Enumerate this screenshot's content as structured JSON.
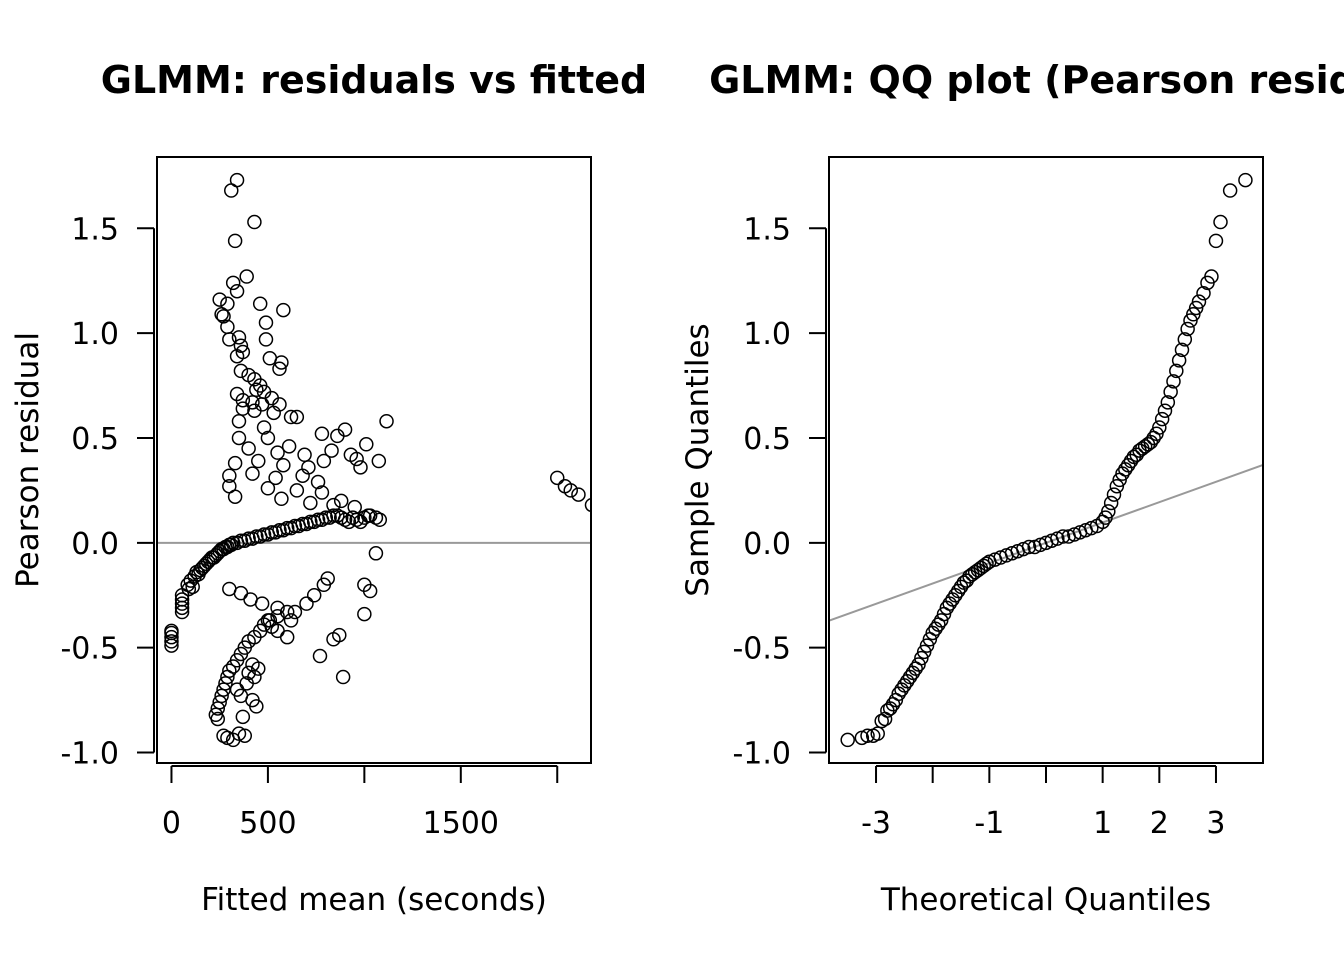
{
  "chart_data": [
    {
      "type": "scatter",
      "title": "GLMM: residuals vs fitted",
      "xlabel": "Fitted mean (seconds)",
      "ylabel": "Pearson residual",
      "xlim": [
        -75,
        2175
      ],
      "ylim": [
        -1.05,
        1.84
      ],
      "x_ticks": [
        0,
        500,
        1000,
        1500,
        2000
      ],
      "x_tick_labels": [
        "0",
        "500",
        "",
        "1500",
        ""
      ],
      "y_ticks": [
        -1.0,
        -0.5,
        0.0,
        0.5,
        1.0,
        1.5
      ],
      "y_tick_labels": [
        "-1.0",
        "-0.5",
        "0.0",
        "0.5",
        "1.0",
        "1.5"
      ],
      "reference_line": {
        "type": "horizontal",
        "y": 0,
        "color": "#999999"
      },
      "grid": false,
      "marker": "open-circle",
      "points": [
        [
          0,
          -0.49
        ],
        [
          0,
          -0.47
        ],
        [
          0,
          -0.45
        ],
        [
          0,
          -0.43
        ],
        [
          0,
          -0.42
        ],
        [
          55,
          -0.33
        ],
        [
          55,
          -0.31
        ],
        [
          55,
          -0.29
        ],
        [
          55,
          -0.27
        ],
        [
          55,
          -0.25
        ],
        [
          84,
          -0.2
        ],
        [
          90,
          -0.22
        ],
        [
          100,
          -0.18
        ],
        [
          110,
          -0.21
        ],
        [
          120,
          -0.16
        ],
        [
          130,
          -0.14
        ],
        [
          140,
          -0.15
        ],
        [
          150,
          -0.13
        ],
        [
          160,
          -0.12
        ],
        [
          170,
          -0.11
        ],
        [
          180,
          -0.1
        ],
        [
          190,
          -0.09
        ],
        [
          200,
          -0.08
        ],
        [
          210,
          -0.07
        ],
        [
          220,
          -0.07
        ],
        [
          230,
          -0.06
        ],
        [
          240,
          -0.05
        ],
        [
          250,
          -0.04
        ],
        [
          260,
          -0.03
        ],
        [
          270,
          -0.03
        ],
        [
          280,
          -0.02
        ],
        [
          290,
          -0.02
        ],
        [
          300,
          -0.01
        ],
        [
          310,
          -0.01
        ],
        [
          320,
          0.0
        ],
        [
          340,
          0.0
        ],
        [
          360,
          0.01
        ],
        [
          380,
          0.01
        ],
        [
          400,
          0.02
        ],
        [
          420,
          0.02
        ],
        [
          440,
          0.03
        ],
        [
          460,
          0.03
        ],
        [
          480,
          0.04
        ],
        [
          500,
          0.04
        ],
        [
          520,
          0.05
        ],
        [
          540,
          0.05
        ],
        [
          560,
          0.06
        ],
        [
          580,
          0.06
        ],
        [
          600,
          0.07
        ],
        [
          620,
          0.07
        ],
        [
          640,
          0.08
        ],
        [
          660,
          0.08
        ],
        [
          680,
          0.09
        ],
        [
          700,
          0.09
        ],
        [
          720,
          0.1
        ],
        [
          740,
          0.1
        ],
        [
          760,
          0.11
        ],
        [
          780,
          0.11
        ],
        [
          800,
          0.12
        ],
        [
          820,
          0.12
        ],
        [
          840,
          0.13
        ],
        [
          860,
          0.13
        ],
        [
          880,
          0.12
        ],
        [
          900,
          0.11
        ],
        [
          920,
          0.1
        ],
        [
          940,
          0.12
        ],
        [
          960,
          0.11
        ],
        [
          980,
          0.1
        ],
        [
          1000,
          0.12
        ],
        [
          1020,
          0.13
        ],
        [
          310,
          1.68
        ],
        [
          340,
          1.73
        ],
        [
          430,
          1.53
        ],
        [
          330,
          1.44
        ],
        [
          390,
          1.27
        ],
        [
          320,
          1.24
        ],
        [
          340,
          1.2
        ],
        [
          250,
          1.16
        ],
        [
          290,
          1.14
        ],
        [
          460,
          1.14
        ],
        [
          580,
          1.11
        ],
        [
          260,
          1.09
        ],
        [
          270,
          1.08
        ],
        [
          490,
          1.05
        ],
        [
          290,
          1.03
        ],
        [
          300,
          0.97
        ],
        [
          350,
          0.98
        ],
        [
          360,
          0.94
        ],
        [
          490,
          0.97
        ],
        [
          370,
          0.91
        ],
        [
          340,
          0.89
        ],
        [
          510,
          0.88
        ],
        [
          570,
          0.86
        ],
        [
          560,
          0.83
        ],
        [
          360,
          0.82
        ],
        [
          400,
          0.8
        ],
        [
          430,
          0.78
        ],
        [
          460,
          0.75
        ],
        [
          440,
          0.73
        ],
        [
          480,
          0.72
        ],
        [
          340,
          0.71
        ],
        [
          370,
          0.68
        ],
        [
          420,
          0.67
        ],
        [
          470,
          0.66
        ],
        [
          520,
          0.69
        ],
        [
          560,
          0.66
        ],
        [
          370,
          0.64
        ],
        [
          430,
          0.63
        ],
        [
          530,
          0.62
        ],
        [
          620,
          0.6
        ],
        [
          650,
          0.6
        ],
        [
          350,
          0.58
        ],
        [
          480,
          0.55
        ],
        [
          900,
          0.54
        ],
        [
          1115,
          0.58
        ],
        [
          350,
          0.5
        ],
        [
          500,
          0.5
        ],
        [
          610,
          0.46
        ],
        [
          780,
          0.52
        ],
        [
          860,
          0.51
        ],
        [
          1010,
          0.47
        ],
        [
          400,
          0.45
        ],
        [
          550,
          0.43
        ],
        [
          690,
          0.42
        ],
        [
          830,
          0.44
        ],
        [
          930,
          0.42
        ],
        [
          960,
          0.4
        ],
        [
          1075,
          0.39
        ],
        [
          330,
          0.38
        ],
        [
          450,
          0.39
        ],
        [
          580,
          0.37
        ],
        [
          710,
          0.36
        ],
        [
          790,
          0.39
        ],
        [
          980,
          0.36
        ],
        [
          300,
          0.32
        ],
        [
          420,
          0.33
        ],
        [
          540,
          0.31
        ],
        [
          680,
          0.32
        ],
        [
          760,
          0.29
        ],
        [
          300,
          0.27
        ],
        [
          500,
          0.26
        ],
        [
          650,
          0.25
        ],
        [
          780,
          0.24
        ],
        [
          880,
          0.2
        ],
        [
          330,
          0.22
        ],
        [
          570,
          0.21
        ],
        [
          720,
          0.19
        ],
        [
          840,
          0.18
        ],
        [
          950,
          0.17
        ],
        [
          1030,
          0.13
        ],
        [
          1060,
          0.12
        ],
        [
          1080,
          0.11
        ],
        [
          2000,
          0.31
        ],
        [
          2040,
          0.27
        ],
        [
          2070,
          0.25
        ],
        [
          2110,
          0.23
        ],
        [
          2180,
          0.18
        ],
        [
          300,
          -0.22
        ],
        [
          360,
          -0.24
        ],
        [
          410,
          -0.27
        ],
        [
          470,
          -0.29
        ],
        [
          550,
          -0.31
        ],
        [
          640,
          -0.33
        ],
        [
          700,
          -0.29
        ],
        [
          740,
          -0.25
        ],
        [
          790,
          -0.2
        ],
        [
          810,
          -0.17
        ],
        [
          1060,
          -0.05
        ],
        [
          1000,
          -0.2
        ],
        [
          1030,
          -0.23
        ],
        [
          1000,
          -0.34
        ],
        [
          870,
          -0.44
        ],
        [
          840,
          -0.46
        ],
        [
          770,
          -0.54
        ],
        [
          890,
          -0.64
        ],
        [
          620,
          -0.37
        ],
        [
          600,
          -0.33
        ],
        [
          550,
          -0.35
        ],
        [
          500,
          -0.37
        ],
        [
          480,
          -0.39
        ],
        [
          460,
          -0.42
        ],
        [
          430,
          -0.45
        ],
        [
          400,
          -0.47
        ],
        [
          380,
          -0.5
        ],
        [
          360,
          -0.53
        ],
        [
          340,
          -0.56
        ],
        [
          320,
          -0.59
        ],
        [
          300,
          -0.61
        ],
        [
          290,
          -0.64
        ],
        [
          280,
          -0.67
        ],
        [
          270,
          -0.7
        ],
        [
          260,
          -0.73
        ],
        [
          250,
          -0.76
        ],
        [
          240,
          -0.79
        ],
        [
          230,
          -0.82
        ],
        [
          240,
          -0.84
        ],
        [
          420,
          -0.58
        ],
        [
          450,
          -0.6
        ],
        [
          400,
          -0.62
        ],
        [
          430,
          -0.64
        ],
        [
          390,
          -0.67
        ],
        [
          340,
          -0.7
        ],
        [
          360,
          -0.73
        ],
        [
          420,
          -0.75
        ],
        [
          440,
          -0.78
        ],
        [
          370,
          -0.83
        ],
        [
          270,
          -0.92
        ],
        [
          290,
          -0.93
        ],
        [
          320,
          -0.94
        ],
        [
          350,
          -0.91
        ],
        [
          380,
          -0.92
        ],
        [
          600,
          -0.45
        ],
        [
          550,
          -0.42
        ],
        [
          520,
          -0.4
        ],
        [
          510,
          -0.37
        ]
      ]
    },
    {
      "type": "scatter",
      "title": "GLMM: QQ plot (Pearson residu",
      "xlabel": "Theoretical Quantiles",
      "ylabel": "Sample Quantiles",
      "xlim": [
        -3.83,
        3.83
      ],
      "ylim": [
        -1.05,
        1.84
      ],
      "x_ticks": [
        -3,
        -2,
        -1,
        0,
        1,
        2,
        3
      ],
      "x_tick_labels": [
        "-3",
        "",
        "-1",
        "",
        "1",
        "2",
        "3"
      ],
      "y_ticks": [
        -1.0,
        -0.5,
        0.0,
        0.5,
        1.0,
        1.5
      ],
      "y_tick_labels": [
        "-1.0",
        "-0.5",
        "0.0",
        "0.5",
        "1.0",
        "1.5"
      ],
      "reference_line": {
        "type": "abline",
        "intercept": 0.0,
        "slope": 0.097,
        "color": "#999999"
      },
      "grid": false,
      "marker": "open-circle",
      "points": [
        [
          -3.5,
          -0.94
        ],
        [
          -3.25,
          -0.93
        ],
        [
          -3.15,
          -0.92
        ],
        [
          -3.05,
          -0.92
        ],
        [
          -2.97,
          -0.91
        ],
        [
          -2.9,
          -0.85
        ],
        [
          -2.84,
          -0.84
        ],
        [
          -2.8,
          -0.8
        ],
        [
          -2.75,
          -0.79
        ],
        [
          -2.7,
          -0.77
        ],
        [
          -2.65,
          -0.75
        ],
        [
          -2.6,
          -0.72
        ],
        [
          -2.55,
          -0.7
        ],
        [
          -2.5,
          -0.68
        ],
        [
          -2.45,
          -0.66
        ],
        [
          -2.4,
          -0.64
        ],
        [
          -2.35,
          -0.62
        ],
        [
          -2.3,
          -0.6
        ],
        [
          -2.25,
          -0.58
        ],
        [
          -2.2,
          -0.55
        ],
        [
          -2.15,
          -0.52
        ],
        [
          -2.1,
          -0.49
        ],
        [
          -2.05,
          -0.46
        ],
        [
          -2.0,
          -0.43
        ],
        [
          -1.95,
          -0.41
        ],
        [
          -1.9,
          -0.39
        ],
        [
          -1.85,
          -0.37
        ],
        [
          -1.8,
          -0.34
        ],
        [
          -1.75,
          -0.31
        ],
        [
          -1.7,
          -0.29
        ],
        [
          -1.65,
          -0.27
        ],
        [
          -1.6,
          -0.25
        ],
        [
          -1.55,
          -0.23
        ],
        [
          -1.5,
          -0.21
        ],
        [
          -1.45,
          -0.19
        ],
        [
          -1.4,
          -0.18
        ],
        [
          -1.35,
          -0.16
        ],
        [
          -1.3,
          -0.15
        ],
        [
          -1.25,
          -0.14
        ],
        [
          -1.2,
          -0.13
        ],
        [
          -1.15,
          -0.12
        ],
        [
          -1.1,
          -0.11
        ],
        [
          -1.05,
          -0.1
        ],
        [
          -1.0,
          -0.09
        ],
        [
          -0.9,
          -0.08
        ],
        [
          -0.8,
          -0.07
        ],
        [
          -0.7,
          -0.06
        ],
        [
          -0.6,
          -0.05
        ],
        [
          -0.5,
          -0.04
        ],
        [
          -0.4,
          -0.03
        ],
        [
          -0.3,
          -0.02
        ],
        [
          -0.2,
          -0.02
        ],
        [
          -0.1,
          -0.01
        ],
        [
          0.0,
          0.0
        ],
        [
          0.1,
          0.01
        ],
        [
          0.2,
          0.02
        ],
        [
          0.3,
          0.03
        ],
        [
          0.4,
          0.03
        ],
        [
          0.5,
          0.04
        ],
        [
          0.6,
          0.05
        ],
        [
          0.7,
          0.06
        ],
        [
          0.8,
          0.07
        ],
        [
          0.9,
          0.08
        ],
        [
          1.0,
          0.1
        ],
        [
          1.05,
          0.12
        ],
        [
          1.1,
          0.15
        ],
        [
          1.15,
          0.19
        ],
        [
          1.2,
          0.23
        ],
        [
          1.25,
          0.27
        ],
        [
          1.3,
          0.3
        ],
        [
          1.35,
          0.33
        ],
        [
          1.4,
          0.35
        ],
        [
          1.45,
          0.37
        ],
        [
          1.5,
          0.39
        ],
        [
          1.55,
          0.41
        ],
        [
          1.6,
          0.42
        ],
        [
          1.65,
          0.44
        ],
        [
          1.7,
          0.45
        ],
        [
          1.75,
          0.46
        ],
        [
          1.8,
          0.47
        ],
        [
          1.85,
          0.48
        ],
        [
          1.9,
          0.5
        ],
        [
          1.95,
          0.52
        ],
        [
          2.0,
          0.55
        ],
        [
          2.05,
          0.59
        ],
        [
          2.1,
          0.63
        ],
        [
          2.15,
          0.67
        ],
        [
          2.2,
          0.72
        ],
        [
          2.25,
          0.77
        ],
        [
          2.3,
          0.82
        ],
        [
          2.35,
          0.87
        ],
        [
          2.4,
          0.92
        ],
        [
          2.45,
          0.97
        ],
        [
          2.5,
          1.02
        ],
        [
          2.55,
          1.06
        ],
        [
          2.6,
          1.09
        ],
        [
          2.65,
          1.12
        ],
        [
          2.7,
          1.15
        ],
        [
          2.78,
          1.19
        ],
        [
          2.85,
          1.24
        ],
        [
          2.92,
          1.27
        ],
        [
          3.0,
          1.44
        ],
        [
          3.08,
          1.53
        ],
        [
          3.25,
          1.68
        ],
        [
          3.52,
          1.73
        ]
      ]
    }
  ]
}
